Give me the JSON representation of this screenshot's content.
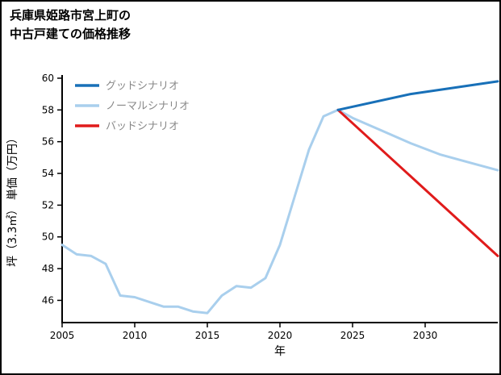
{
  "page": {
    "title_line1": "兵庫県姫路市宮上町の",
    "title_line2": "中古戸建ての価格推移"
  },
  "chart_data": {
    "type": "line",
    "title": "兵庫県姫路市宮上町の中古戸建ての価格推移",
    "xlabel": "年",
    "ylabel": "坪（3.3㎡） 単価（万円）",
    "xlim": [
      2005,
      2035
    ],
    "ylim": [
      44.6,
      60.1
    ],
    "xticks": [
      2005,
      2010,
      2015,
      2020,
      2025,
      2030
    ],
    "yticks": [
      46,
      48,
      50,
      52,
      54,
      56,
      58,
      60
    ],
    "grid": false,
    "legend_position": "upper-left",
    "colors": {
      "axis": "#000000",
      "legend_text": "#888888",
      "good": "#1870b8",
      "normal": "#a9cfed",
      "bad": "#e01b1b"
    },
    "legend": [
      {
        "label": "グッドシナリオ",
        "color": "#1870b8"
      },
      {
        "label": "ノーマルシナリオ",
        "color": "#a9cfed"
      },
      {
        "label": "バッドシナリオ",
        "color": "#e01b1b"
      }
    ],
    "series": [
      {
        "name": "price-history",
        "color": "#a9cfed",
        "x": [
          2005,
          2006,
          2007,
          2008,
          2009,
          2010,
          2011,
          2012,
          2013,
          2014,
          2015,
          2016,
          2017,
          2018,
          2019,
          2020,
          2021,
          2022,
          2023,
          2024
        ],
        "y": [
          49.5,
          48.9,
          48.8,
          48.3,
          46.3,
          46.2,
          45.9,
          45.6,
          45.6,
          45.3,
          45.2,
          46.3,
          46.9,
          46.8,
          47.4,
          49.5,
          52.5,
          55.5,
          57.6,
          58.0
        ]
      },
      {
        "name": "normal-scenario",
        "color": "#a9cfed",
        "x": [
          2024,
          2025,
          2027,
          2029,
          2031,
          2033,
          2035
        ],
        "y": [
          58.0,
          57.5,
          56.7,
          55.9,
          55.2,
          54.7,
          54.2
        ]
      },
      {
        "name": "bad-scenario",
        "color": "#e01b1b",
        "x": [
          2024,
          2035
        ],
        "y": [
          58.0,
          48.8
        ]
      },
      {
        "name": "good-scenario",
        "color": "#1870b8",
        "x": [
          2024,
          2029,
          2035
        ],
        "y": [
          58.0,
          59.0,
          59.8
        ]
      }
    ]
  }
}
